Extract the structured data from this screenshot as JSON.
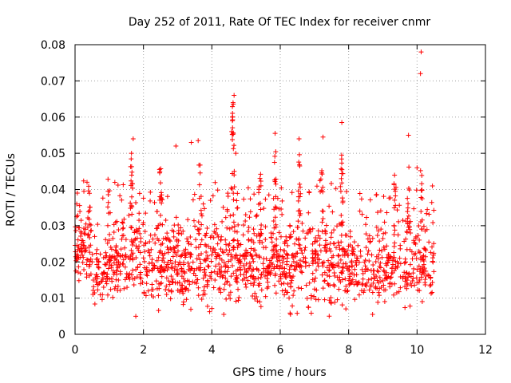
{
  "chart_data": {
    "type": "scatter",
    "title": "Day 252 of 2011, Rate Of TEC Index for receiver cnmr",
    "xlabel": "GPS time / hours",
    "ylabel": "ROTI / TECUs",
    "xlim": [
      0,
      12
    ],
    "ylim": [
      0,
      0.08
    ],
    "x_ticks": [
      "0",
      "2",
      "4",
      "6",
      "8",
      "10",
      "12"
    ],
    "y_ticks": [
      "0",
      "0.01",
      "0.02",
      "0.03",
      "0.04",
      "0.05",
      "0.06",
      "0.07",
      "0.08"
    ],
    "grid": true,
    "marker": "+",
    "marker_color": "#ff0000",
    "data_range": {
      "x_min": 0.0,
      "x_max": 10.5,
      "y_min": 0.005,
      "y_max": 0.078
    },
    "highlighted_points": [
      {
        "x": 10.12,
        "y": 0.078
      },
      {
        "x": 10.1,
        "y": 0.072
      },
      {
        "x": 4.65,
        "y": 0.066
      },
      {
        "x": 4.62,
        "y": 0.064
      },
      {
        "x": 4.6,
        "y": 0.06
      },
      {
        "x": 4.58,
        "y": 0.056
      },
      {
        "x": 7.8,
        "y": 0.0585
      },
      {
        "x": 5.85,
        "y": 0.0555
      },
      {
        "x": 9.75,
        "y": 0.055
      },
      {
        "x": 1.7,
        "y": 0.054
      },
      {
        "x": 3.6,
        "y": 0.0535
      },
      {
        "x": 3.4,
        "y": 0.053
      },
      {
        "x": 6.55,
        "y": 0.054
      },
      {
        "x": 2.95,
        "y": 0.052
      },
      {
        "x": 7.25,
        "y": 0.0545
      },
      {
        "x": 1.65,
        "y": 0.05
      },
      {
        "x": 4.7,
        "y": 0.05
      },
      {
        "x": 10.0,
        "y": 0.046
      },
      {
        "x": 0.35,
        "y": 0.042
      },
      {
        "x": 0.05,
        "y": 0.036
      },
      {
        "x": 10.45,
        "y": 0.041
      },
      {
        "x": 8.7,
        "y": 0.0055
      },
      {
        "x": 6.3,
        "y": 0.0055
      }
    ],
    "bulk_clusters": [
      {
        "x_start": 0.0,
        "x_end": 0.5,
        "y_center": 0.022,
        "y_spread": 0.007,
        "count": 80
      },
      {
        "x_start": 0.5,
        "x_end": 1.0,
        "y_center": 0.017,
        "y_spread": 0.005,
        "count": 60
      },
      {
        "x_start": 1.0,
        "x_end": 2.0,
        "y_center": 0.02,
        "y_spread": 0.007,
        "count": 150
      },
      {
        "x_start": 2.0,
        "x_end": 3.0,
        "y_center": 0.019,
        "y_spread": 0.007,
        "count": 150
      },
      {
        "x_start": 3.0,
        "x_end": 4.0,
        "y_center": 0.018,
        "y_spread": 0.007,
        "count": 150
      },
      {
        "x_start": 4.0,
        "x_end": 5.0,
        "y_center": 0.02,
        "y_spread": 0.007,
        "count": 160
      },
      {
        "x_start": 5.0,
        "x_end": 6.0,
        "y_center": 0.02,
        "y_spread": 0.007,
        "count": 160
      },
      {
        "x_start": 6.0,
        "x_end": 7.0,
        "y_center": 0.019,
        "y_spread": 0.007,
        "count": 150
      },
      {
        "x_start": 7.0,
        "x_end": 8.0,
        "y_center": 0.02,
        "y_spread": 0.007,
        "count": 150
      },
      {
        "x_start": 8.0,
        "x_end": 9.0,
        "y_center": 0.017,
        "y_spread": 0.006,
        "count": 130
      },
      {
        "x_start": 9.0,
        "x_end": 10.0,
        "y_center": 0.019,
        "y_spread": 0.007,
        "count": 140
      },
      {
        "x_start": 10.0,
        "x_end": 10.5,
        "y_center": 0.02,
        "y_spread": 0.006,
        "count": 70
      }
    ],
    "upper_arcs": [
      {
        "x_center": 0.4,
        "width": 0.1,
        "y_top": 0.041,
        "y_bottom": 0.025,
        "count": 10
      },
      {
        "x_center": 1.0,
        "width": 0.15,
        "y_top": 0.047,
        "y_bottom": 0.025,
        "count": 12
      },
      {
        "x_center": 1.65,
        "width": 0.1,
        "y_top": 0.05,
        "y_bottom": 0.028,
        "count": 14
      },
      {
        "x_center": 2.5,
        "width": 0.15,
        "y_top": 0.047,
        "y_bottom": 0.025,
        "count": 12
      },
      {
        "x_center": 3.65,
        "width": 0.15,
        "y_top": 0.049,
        "y_bottom": 0.026,
        "count": 14
      },
      {
        "x_center": 4.62,
        "width": 0.1,
        "y_top": 0.065,
        "y_bottom": 0.03,
        "count": 22
      },
      {
        "x_center": 5.4,
        "width": 0.15,
        "y_top": 0.045,
        "y_bottom": 0.026,
        "count": 12
      },
      {
        "x_center": 5.85,
        "width": 0.1,
        "y_top": 0.052,
        "y_bottom": 0.028,
        "count": 14
      },
      {
        "x_center": 6.55,
        "width": 0.1,
        "y_top": 0.052,
        "y_bottom": 0.028,
        "count": 14
      },
      {
        "x_center": 7.2,
        "width": 0.15,
        "y_top": 0.047,
        "y_bottom": 0.026,
        "count": 12
      },
      {
        "x_center": 7.8,
        "width": 0.1,
        "y_top": 0.057,
        "y_bottom": 0.03,
        "count": 16
      },
      {
        "x_center": 9.35,
        "width": 0.15,
        "y_top": 0.044,
        "y_bottom": 0.025,
        "count": 12
      },
      {
        "x_center": 9.75,
        "width": 0.1,
        "y_top": 0.05,
        "y_bottom": 0.028,
        "count": 12
      },
      {
        "x_center": 10.12,
        "width": 0.1,
        "y_top": 0.047,
        "y_bottom": 0.028,
        "count": 12
      }
    ]
  }
}
